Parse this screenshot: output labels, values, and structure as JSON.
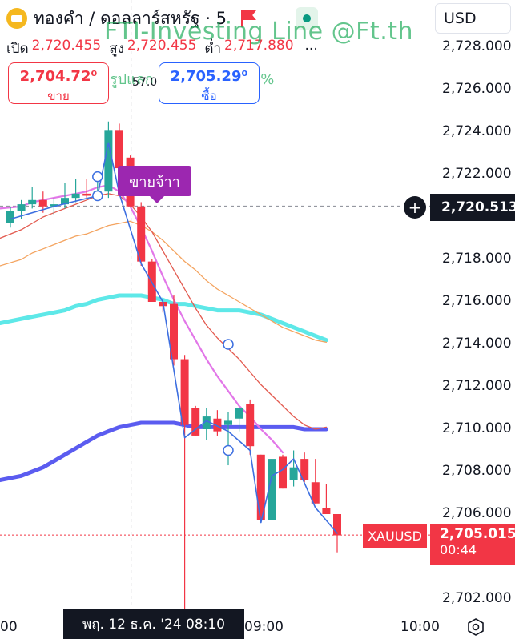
{
  "header": {
    "symbol_title": "ทองคำ / ดอลลาร์สหรัฐ · 5",
    "ohlc": {
      "open_label": "เปิด",
      "open": "2,720.455",
      "high_label": "สูง",
      "high": "2,720.455",
      "low_label": "ต่ำ",
      "low": "2,717.880",
      "more": "..."
    },
    "sell": {
      "price": "2,704.72⁰",
      "label": "ขาย"
    },
    "buy": {
      "price": "2,705.29⁰",
      "label": "ซื้อ"
    },
    "mid_value": "57.0",
    "currency": "USD"
  },
  "overlay": {
    "watermark": "FTI-Investing Line @Ft.th",
    "green_text": "รูปแลก  ง    หลัง  ==  76.2%",
    "signal_label": "ขายจ้าา"
  },
  "price_axis": {
    "ticks": [
      "2,728.000",
      "2,726.000",
      "2,724.000",
      "2,722.000",
      "2,718.000",
      "2,716.000",
      "2,714.000",
      "2,712.000",
      "2,710.000",
      "2,708.000",
      "2,706.000",
      "2,702.000"
    ],
    "crosshair_price": "2,720.513",
    "symbol_tag": "XAUUSD",
    "last_price": "2,705.015",
    "countdown": "00:44"
  },
  "time_axis": {
    "left_label": "00",
    "highlight": "พฤ. 12 ธ.ค. '24   08:10",
    "label_0900": "09:00",
    "label_1000": "10:00"
  },
  "colors": {
    "up": "#26a69a",
    "down": "#f23645",
    "ma_thick": "#5b5cf0",
    "ma_cyan": "#5ee8e8",
    "ma_violet": "#e277e8",
    "ma_orange": "#f4a460",
    "ma_red": "#e35a4f",
    "zigzag": "#3d6fe0"
  },
  "chart_data": {
    "type": "candlestick",
    "timeframe_minutes": 5,
    "y_range": [
      2701.2,
      2729.0
    ],
    "candles": [
      {
        "o": 2719.7,
        "h": 2720.5,
        "l": 2719.5,
        "c": 2720.3
      },
      {
        "o": 2720.3,
        "h": 2720.8,
        "l": 2719.9,
        "c": 2720.6
      },
      {
        "o": 2720.6,
        "h": 2721.4,
        "l": 2720.4,
        "c": 2720.8
      },
      {
        "o": 2720.8,
        "h": 2721.2,
        "l": 2720.2,
        "c": 2720.5
      },
      {
        "o": 2720.5,
        "h": 2720.9,
        "l": 2720.1,
        "c": 2720.6
      },
      {
        "o": 2720.6,
        "h": 2721.6,
        "l": 2720.4,
        "c": 2720.9
      },
      {
        "o": 2720.9,
        "h": 2721.8,
        "l": 2720.7,
        "c": 2721.1
      },
      {
        "o": 2721.1,
        "h": 2721.8,
        "l": 2720.9,
        "c": 2721.0
      },
      {
        "o": 2721.0,
        "h": 2721.7,
        "l": 2720.8,
        "c": 2721.2
      },
      {
        "o": 2721.2,
        "h": 2724.5,
        "l": 2720.9,
        "c": 2724.1
      },
      {
        "o": 2724.1,
        "h": 2724.4,
        "l": 2722.0,
        "c": 2722.3
      },
      {
        "o": 2722.8,
        "h": 2722.9,
        "l": 2720.5,
        "c": 2720.5
      },
      {
        "o": 2720.5,
        "h": 2720.7,
        "l": 2717.7,
        "c": 2717.9
      },
      {
        "o": 2717.9,
        "h": 2718.0,
        "l": 2716.0,
        "c": 2716.0
      },
      {
        "o": 2716.0,
        "h": 2716.0,
        "l": 2715.5,
        "c": 2715.8
      },
      {
        "o": 2715.9,
        "h": 2716.3,
        "l": 2713.0,
        "c": 2713.3
      },
      {
        "o": 2713.3,
        "h": 2713.5,
        "l": 2701.0,
        "c": 2710.2
      },
      {
        "o": 2711.0,
        "h": 2711.1,
        "l": 2709.7,
        "c": 2709.7
      },
      {
        "o": 2710.0,
        "h": 2711.0,
        "l": 2709.5,
        "c": 2710.6
      },
      {
        "o": 2710.5,
        "h": 2710.9,
        "l": 2709.7,
        "c": 2709.9
      },
      {
        "o": 2710.2,
        "h": 2710.8,
        "l": 2708.3,
        "c": 2710.4
      },
      {
        "o": 2710.5,
        "h": 2711.0,
        "l": 2709.9,
        "c": 2711.0
      },
      {
        "o": 2711.2,
        "h": 2711.4,
        "l": 2708.8,
        "c": 2709.2
      },
      {
        "o": 2708.8,
        "h": 2708.8,
        "l": 2705.6,
        "c": 2705.7
      },
      {
        "o": 2705.7,
        "h": 2708.6,
        "l": 2705.7,
        "c": 2708.6
      },
      {
        "o": 2708.7,
        "h": 2708.8,
        "l": 2707.2,
        "c": 2707.2
      },
      {
        "o": 2707.6,
        "h": 2709.0,
        "l": 2707.3,
        "c": 2708.2
      },
      {
        "o": 2708.6,
        "h": 2708.9,
        "l": 2707.5,
        "c": 2707.6
      },
      {
        "o": 2707.5,
        "h": 2708.6,
        "l": 2706.5,
        "c": 2706.5
      },
      {
        "o": 2706.3,
        "h": 2707.4,
        "l": 2706.0,
        "c": 2706.0
      },
      {
        "o": 2706.0,
        "h": 2706.0,
        "l": 2704.2,
        "c": 2705.0
      }
    ],
    "indicators": [
      {
        "name": "ma_thick",
        "values": [
          2707.6,
          2707.8,
          2708.0,
          2708.2,
          2708.5,
          2708.8,
          2709.1,
          2709.4,
          2709.7,
          2709.9,
          2710.1,
          2710.2,
          2710.3,
          2710.3,
          2710.3,
          2710.3,
          2710.2,
          2710.1,
          2710.1,
          2710.1,
          2710.1,
          2710.1,
          2710.1,
          2710.1,
          2710.1,
          2710.1,
          2710.1,
          2710.0,
          2710.0,
          2710.0
        ]
      },
      {
        "name": "ma_cyan",
        "values": [
          2715.0,
          2715.2,
          2715.3,
          2715.4,
          2715.5,
          2715.6,
          2715.8,
          2715.9,
          2716.1,
          2716.2,
          2716.3,
          2716.3,
          2716.3,
          2716.2,
          2716.1,
          2715.9,
          2715.9,
          2715.8,
          2715.7,
          2715.6,
          2715.6,
          2715.6,
          2715.5,
          2715.4,
          2715.2,
          2715.0,
          2714.8,
          2714.6,
          2714.4,
          2714.2
        ]
      },
      {
        "name": "ma_orange",
        "values": [
          2717.7,
          2718.0,
          2718.3,
          2718.5,
          2718.7,
          2718.9,
          2719.1,
          2719.2,
          2719.4,
          2719.6,
          2719.7,
          2719.8,
          2719.6,
          2719.3,
          2718.9,
          2718.4,
          2717.9,
          2717.5,
          2717.0,
          2716.6,
          2716.3,
          2716.0,
          2715.7,
          2715.4,
          2715.1,
          2714.8,
          2714.6,
          2714.4,
          2714.2,
          2714.1
        ]
      },
      {
        "name": "ma_red",
        "values": [
          2719.0,
          2719.4,
          2719.7,
          2720.0,
          2720.2,
          2720.4,
          2720.6,
          2720.8,
          2721.0,
          2721.1,
          2721.0,
          2720.6,
          2720.0,
          2719.3,
          2718.4,
          2717.5,
          2716.6,
          2715.7,
          2714.9,
          2714.3,
          2713.8,
          2713.3,
          2712.7,
          2712.1,
          2711.6,
          2711.1,
          2710.6,
          2710.2,
          2710.0,
          2710.1
        ]
      },
      {
        "name": "ma_violet",
        "values": [
          2720.4,
          2720.5,
          2720.7,
          2720.8,
          2720.9,
          2721.0,
          2721.1,
          2721.2,
          2721.4,
          2721.5,
          2721.2,
          2720.5,
          2719.5,
          2718.4,
          2717.2,
          2716.1,
          2715.1,
          2714.2,
          2713.3,
          2712.5,
          2711.8,
          2711.1,
          2710.6,
          2710.0,
          2709.5,
          2708.9
        ]
      },
      {
        "name": "zigzag",
        "points": [
          [
            0,
            2719.9
          ],
          [
            4,
            2720.5
          ],
          [
            8,
            2721.0
          ],
          [
            9,
            2723.5
          ],
          [
            10,
            2721.1
          ],
          [
            12,
            2717.8
          ],
          [
            14,
            2716.0
          ],
          [
            16,
            2709.6
          ],
          [
            18,
            2710.4
          ],
          [
            20,
            2709.9
          ],
          [
            22,
            2709.0
          ],
          [
            23,
            2705.6
          ],
          [
            24,
            2707.8
          ],
          [
            25,
            2708.1
          ],
          [
            26,
            2708.6
          ],
          [
            28,
            2706.3
          ],
          [
            30,
            2705.1
          ]
        ]
      }
    ],
    "markers": [
      {
        "i": 8,
        "v": 2721.9
      },
      {
        "i": 8,
        "v": 2721.0
      },
      {
        "i": 20,
        "v": 2714.0
      },
      {
        "i": 20,
        "v": 2709.0
      }
    ],
    "crosshair": {
      "index": 11,
      "value": 2720.513
    },
    "last_price": 2705.015
  }
}
